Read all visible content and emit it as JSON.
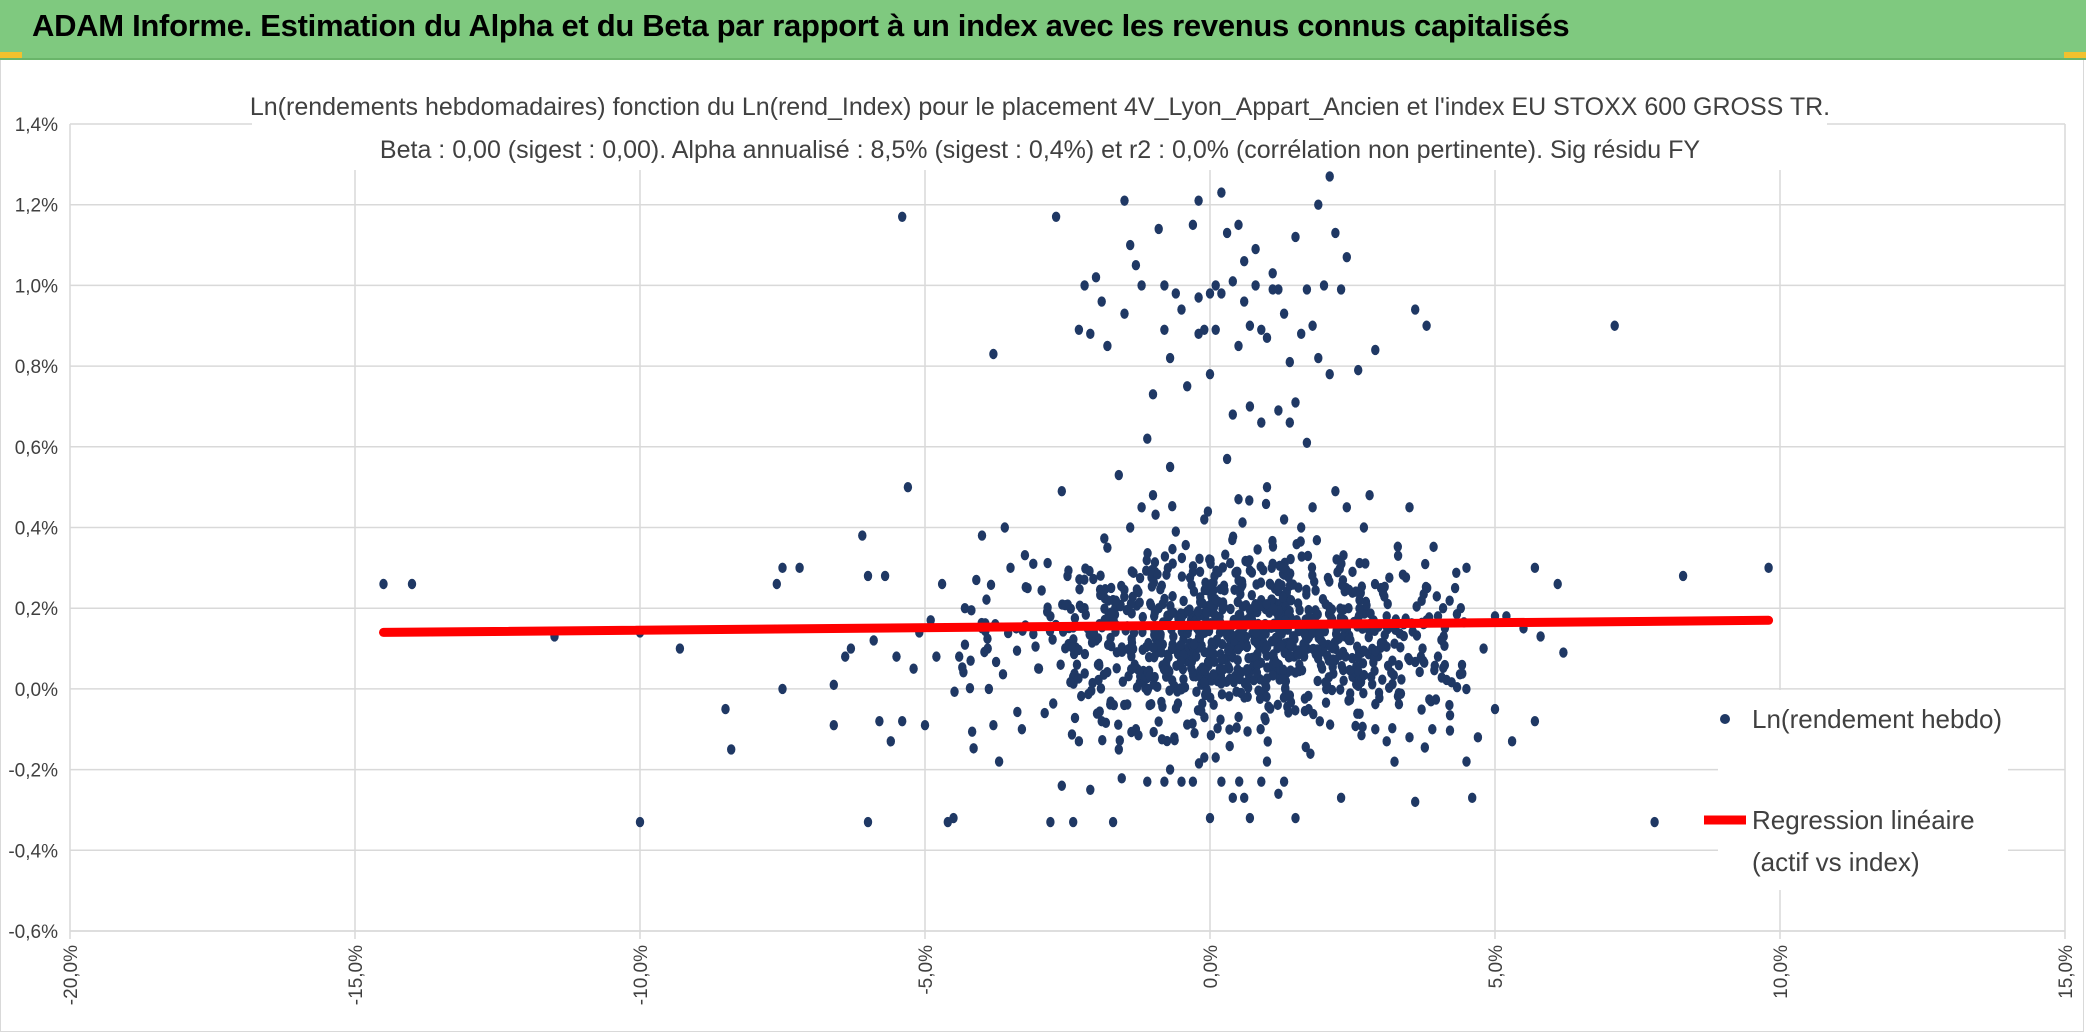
{
  "header": {
    "title": "ADAM Informe. Estimation du Alpha et du Beta par rapport à un index avec les revenus connus capitalisés"
  },
  "colors": {
    "header_bg": "#7fc97f",
    "points": "#1f3864",
    "regression": "#ff0000",
    "grid": "#d9d9d9",
    "text": "#404040"
  },
  "chart_data": {
    "type": "scatter",
    "title_lines": [
      "Ln(rendements hebdomadaires) fonction du Ln(rend_Index) pour le placement 4V_Lyon_Appart_Ancien et l'index EU STOXX 600 GROSS TR.",
      "Beta : 0,00 (sigest : 0,00). Alpha annualisé : 8,5% (sigest : 0,4%) et r2 : 0,0% (corrélation non pertinente). Sig résidu FY"
    ],
    "xlim": [
      -0.2,
      0.15
    ],
    "ylim": [
      -0.006,
      0.014
    ],
    "x_ticks": [
      "-20,0%",
      "-15,0%",
      "-10,0%",
      "-5,0%",
      "0,0%",
      "5,0%",
      "10,0%",
      "15,0%"
    ],
    "y_ticks": [
      "1,4%",
      "1,2%",
      "1,0%",
      "0,8%",
      "0,6%",
      "0,4%",
      "0,2%",
      "0,0%",
      "-0,2%",
      "-0,4%",
      "-0,6%"
    ],
    "grid": true,
    "legend_position": "right",
    "series": [
      {
        "name": "Ln(rendement hebdo)",
        "kind": "points",
        "color": "#1f3864",
        "points": [
          [
            -0.145,
            0.0026
          ],
          [
            -0.14,
            0.0026
          ],
          [
            -0.115,
            0.0013
          ],
          [
            -0.1,
            0.0014
          ],
          [
            -0.1,
            -0.0033
          ],
          [
            -0.093,
            0.001
          ],
          [
            -0.085,
            -0.0005
          ],
          [
            -0.084,
            -0.0015
          ],
          [
            -0.076,
            0.0026
          ],
          [
            -0.075,
            0.003
          ],
          [
            -0.075,
            0.0
          ],
          [
            -0.072,
            0.003
          ],
          [
            -0.066,
            0.0001
          ],
          [
            -0.066,
            -0.0009
          ],
          [
            -0.064,
            0.0008
          ],
          [
            -0.063,
            0.001
          ],
          [
            -0.061,
            0.0038
          ],
          [
            -0.06,
            0.0028
          ],
          [
            -0.06,
            -0.0033
          ],
          [
            -0.059,
            0.0012
          ],
          [
            -0.058,
            -0.0008
          ],
          [
            -0.057,
            0.0028
          ],
          [
            -0.056,
            -0.0013
          ],
          [
            -0.055,
            0.0008
          ],
          [
            -0.054,
            0.0117
          ],
          [
            -0.054,
            -0.0008
          ],
          [
            -0.053,
            0.005
          ],
          [
            -0.052,
            0.0005
          ],
          [
            -0.051,
            0.0014
          ],
          [
            -0.05,
            -0.0009
          ],
          [
            -0.049,
            0.0017
          ],
          [
            -0.048,
            0.0008
          ],
          [
            -0.047,
            0.0026
          ],
          [
            -0.046,
            -0.0033
          ],
          [
            -0.045,
            -0.0032
          ],
          [
            -0.044,
            0.0008
          ],
          [
            -0.043,
            0.002
          ],
          [
            -0.042,
            0.0007
          ],
          [
            -0.041,
            0.0027
          ],
          [
            -0.04,
            0.0015
          ],
          [
            -0.04,
            0.0038
          ],
          [
            -0.039,
            0.001
          ],
          [
            -0.038,
            -0.0009
          ],
          [
            -0.038,
            0.0083
          ],
          [
            -0.037,
            -0.0018
          ],
          [
            -0.036,
            0.004
          ],
          [
            -0.035,
            0.003
          ],
          [
            -0.034,
            0.0015
          ],
          [
            -0.033,
            -0.001
          ],
          [
            -0.032,
            0.0025
          ],
          [
            -0.031,
            0.0031
          ],
          [
            -0.03,
            0.0005
          ],
          [
            -0.029,
            -0.0006
          ],
          [
            -0.028,
            0.0018
          ],
          [
            -0.028,
            -0.0033
          ],
          [
            -0.027,
            0.0117
          ],
          [
            -0.026,
            0.0049
          ],
          [
            -0.026,
            -0.0024
          ],
          [
            -0.025,
            0.0028
          ],
          [
            -0.024,
            0.0003
          ],
          [
            -0.024,
            -0.0033
          ],
          [
            -0.023,
            0.0089
          ],
          [
            -0.023,
            -0.0013
          ],
          [
            -0.022,
            0.01
          ],
          [
            -0.022,
            0.002
          ],
          [
            -0.021,
            0.0088
          ],
          [
            -0.021,
            -0.0025
          ],
          [
            -0.02,
            0.0102
          ],
          [
            -0.02,
            0.0012
          ],
          [
            -0.019,
            0.0096
          ],
          [
            -0.019,
            -0.0008
          ],
          [
            -0.018,
            0.0085
          ],
          [
            -0.018,
            0.0035
          ],
          [
            -0.017,
            0.0022
          ],
          [
            -0.017,
            -0.0033
          ],
          [
            -0.016,
            0.0053
          ],
          [
            -0.016,
            -0.0015
          ],
          [
            -0.015,
            0.0121
          ],
          [
            -0.015,
            0.0093
          ],
          [
            -0.014,
            0.011
          ],
          [
            -0.014,
            0.004
          ],
          [
            -0.013,
            0.0105
          ],
          [
            -0.013,
            -0.001
          ],
          [
            -0.012,
            0.0045
          ],
          [
            -0.012,
            0.01
          ],
          [
            -0.011,
            0.0062
          ],
          [
            -0.011,
            -0.0023
          ],
          [
            -0.01,
            0.0048
          ],
          [
            -0.01,
            0.0073
          ],
          [
            -0.009,
            0.0114
          ],
          [
            -0.009,
            0.002
          ],
          [
            -0.008,
            0.01
          ],
          [
            -0.008,
            0.0089
          ],
          [
            -0.008,
            -0.0023
          ],
          [
            -0.007,
            0.0082
          ],
          [
            -0.007,
            0.0055
          ],
          [
            -0.007,
            -0.002
          ],
          [
            -0.006,
            0.0098
          ],
          [
            -0.006,
            0.0039
          ],
          [
            -0.005,
            0.0094
          ],
          [
            -0.005,
            -0.0023
          ],
          [
            -0.004,
            0.0075
          ],
          [
            -0.004,
            0.001
          ],
          [
            -0.003,
            0.0115
          ],
          [
            -0.003,
            0.0029
          ],
          [
            -0.003,
            -0.0023
          ],
          [
            -0.002,
            0.0121
          ],
          [
            -0.002,
            0.0097
          ],
          [
            -0.002,
            0.0088
          ],
          [
            -0.001,
            0.0089
          ],
          [
            -0.001,
            0.0042
          ],
          [
            -0.001,
            -0.0017
          ],
          [
            0.0,
            0.0098
          ],
          [
            0.0,
            0.0078
          ],
          [
            0.0,
            -0.0032
          ],
          [
            0.001,
            0.01
          ],
          [
            0.001,
            0.0089
          ],
          [
            0.001,
            -0.0017
          ],
          [
            0.002,
            0.0123
          ],
          [
            0.002,
            0.0098
          ],
          [
            0.002,
            -0.0023
          ],
          [
            0.003,
            0.0113
          ],
          [
            0.003,
            0.0057
          ],
          [
            0.003,
            0.0014
          ],
          [
            0.004,
            0.0101
          ],
          [
            0.004,
            0.0068
          ],
          [
            0.004,
            -0.0027
          ],
          [
            0.005,
            0.0115
          ],
          [
            0.005,
            0.0085
          ],
          [
            0.005,
            0.0047
          ],
          [
            0.006,
            0.0106
          ],
          [
            0.006,
            0.0096
          ],
          [
            0.006,
            -0.0027
          ],
          [
            0.007,
            0.007
          ],
          [
            0.007,
            0.009
          ],
          [
            0.007,
            -0.0032
          ],
          [
            0.008,
            0.01
          ],
          [
            0.008,
            0.0109
          ],
          [
            0.008,
            0.0021
          ],
          [
            0.009,
            0.0066
          ],
          [
            0.009,
            0.0089
          ],
          [
            0.009,
            -0.0023
          ],
          [
            0.01,
            0.0087
          ],
          [
            0.01,
            0.005
          ],
          [
            0.01,
            -0.0018
          ],
          [
            0.011,
            0.0103
          ],
          [
            0.011,
            0.0099
          ],
          [
            0.011,
            0.0031
          ],
          [
            0.012,
            0.0069
          ],
          [
            0.012,
            0.0099
          ],
          [
            0.012,
            -0.0026
          ],
          [
            0.013,
            0.0093
          ],
          [
            0.013,
            0.0042
          ],
          [
            0.013,
            -0.0023
          ],
          [
            0.014,
            0.0081
          ],
          [
            0.014,
            0.0066
          ],
          [
            0.015,
            0.0112
          ],
          [
            0.015,
            0.0071
          ],
          [
            0.015,
            -0.0032
          ],
          [
            0.016,
            0.0088
          ],
          [
            0.016,
            0.004
          ],
          [
            0.017,
            0.0061
          ],
          [
            0.017,
            0.0099
          ],
          [
            0.018,
            0.009
          ],
          [
            0.018,
            0.0045
          ],
          [
            0.019,
            0.0082
          ],
          [
            0.019,
            0.012
          ],
          [
            0.02,
            0.01
          ],
          [
            0.02,
            0.0015
          ],
          [
            0.021,
            0.0127
          ],
          [
            0.021,
            0.0078
          ],
          [
            0.022,
            0.0113
          ],
          [
            0.022,
            0.0049
          ],
          [
            0.023,
            0.0099
          ],
          [
            0.023,
            -0.0027
          ],
          [
            0.024,
            0.0107
          ],
          [
            0.024,
            0.0045
          ],
          [
            0.025,
            0.0029
          ],
          [
            0.025,
            0.0003
          ],
          [
            0.026,
            0.0079
          ],
          [
            0.027,
            0.004
          ],
          [
            0.028,
            0.0048
          ],
          [
            0.028,
            0.0016
          ],
          [
            0.029,
            0.0084
          ],
          [
            0.029,
            -0.001
          ],
          [
            0.03,
            0.0025
          ],
          [
            0.031,
            0.0018
          ],
          [
            0.031,
            -0.0013
          ],
          [
            0.032,
            0.0007
          ],
          [
            0.033,
            0.0033
          ],
          [
            0.034,
            0.0016
          ],
          [
            0.035,
            -0.0012
          ],
          [
            0.035,
            0.0045
          ],
          [
            0.036,
            0.0094
          ],
          [
            0.036,
            -0.0028
          ],
          [
            0.037,
            0.0008
          ],
          [
            0.038,
            0.009
          ],
          [
            0.038,
            0.0017
          ],
          [
            0.039,
            -0.001
          ],
          [
            0.04,
            0.0018
          ],
          [
            0.04,
            0.0008
          ],
          [
            0.041,
            0.0013
          ],
          [
            0.042,
            -0.0004
          ],
          [
            0.043,
            0.0025
          ],
          [
            0.044,
            0.002
          ],
          [
            0.045,
            0.003
          ],
          [
            0.045,
            -0.0018
          ],
          [
            0.046,
            -0.0027
          ],
          [
            0.047,
            -0.0012
          ],
          [
            0.048,
            0.001
          ],
          [
            0.05,
            0.0018
          ],
          [
            0.05,
            -0.0005
          ],
          [
            0.052,
            0.0018
          ],
          [
            0.053,
            -0.0013
          ],
          [
            0.055,
            0.0015
          ],
          [
            0.057,
            -0.0008
          ],
          [
            0.057,
            0.003
          ],
          [
            0.058,
            0.0013
          ],
          [
            0.061,
            0.0026
          ],
          [
            0.062,
            0.0009
          ],
          [
            0.071,
            0.009
          ],
          [
            0.078,
            -0.0033
          ],
          [
            0.083,
            0.0028
          ],
          [
            0.098,
            0.003
          ]
        ]
      },
      {
        "name": "Regression linéaire (actif vs index)",
        "legend_lines": [
          "Regression linéaire",
          "(actif vs index)"
        ],
        "kind": "line",
        "color": "#ff0000",
        "points": [
          [
            -0.145,
            0.0014
          ],
          [
            0.098,
            0.0017
          ]
        ]
      }
    ],
    "dense_cluster": {
      "x_center": 0.005,
      "x_spread": 0.018,
      "y_center": 0.0012,
      "y_spread": 0.0011,
      "count": 1000,
      "seed": 7
    }
  }
}
